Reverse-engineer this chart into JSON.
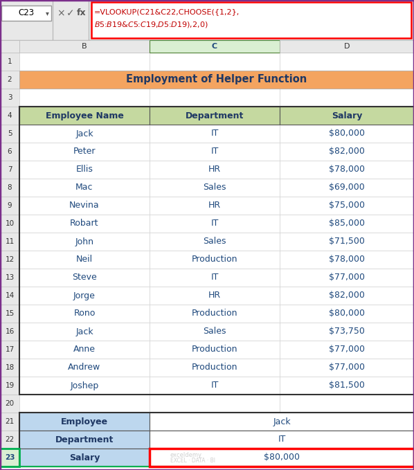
{
  "title": "Employment of Helper Function",
  "title_bg": "#F4A460",
  "header_bg": "#C5D9A0",
  "header_text_color": "#1F3864",
  "cell_text_color": "#1F497D",
  "main_headers": [
    "Employee Name",
    "Department",
    "Salary"
  ],
  "main_data": [
    [
      "Jack",
      "IT",
      "$80,000"
    ],
    [
      "Peter",
      "IT",
      "$82,000"
    ],
    [
      "Ellis",
      "HR",
      "$78,000"
    ],
    [
      "Mac",
      "Sales",
      "$69,000"
    ],
    [
      "Nevina",
      "HR",
      "$75,000"
    ],
    [
      "Robart",
      "IT",
      "$85,000"
    ],
    [
      "John",
      "Sales",
      "$71,500"
    ],
    [
      "Neil",
      "Production",
      "$78,000"
    ],
    [
      "Steve",
      "IT",
      "$77,000"
    ],
    [
      "Jorge",
      "HR",
      "$82,000"
    ],
    [
      "Rono",
      "Production",
      "$80,000"
    ],
    [
      "Jack",
      "Sales",
      "$73,750"
    ],
    [
      "Anne",
      "Production",
      "$77,000"
    ],
    [
      "Andrew",
      "Production",
      "$77,000"
    ],
    [
      "Joshep",
      "IT",
      "$81,500"
    ]
  ],
  "lookup_labels": [
    "Employee",
    "Department",
    "Salary"
  ],
  "lookup_values": [
    "Jack",
    "IT",
    "$80,000"
  ],
  "formula_line1": "=VLOOKUP(C21&C22,CHOOSE({1,2},",
  "formula_line2": "$B$5:$B$19&$C$5:$C$19,$D$5:$D$19),2,0)",
  "cell_ref": "C23",
  "selected_cell_border": "#00B050",
  "lookup_label_bg": "#BDD7EE",
  "outer_border_color": "#7B2F8B",
  "formula_border_color": "#FF0000",
  "watermark_line1": "exceldemy",
  "watermark_line2": "EXCEL · DATA · BI"
}
